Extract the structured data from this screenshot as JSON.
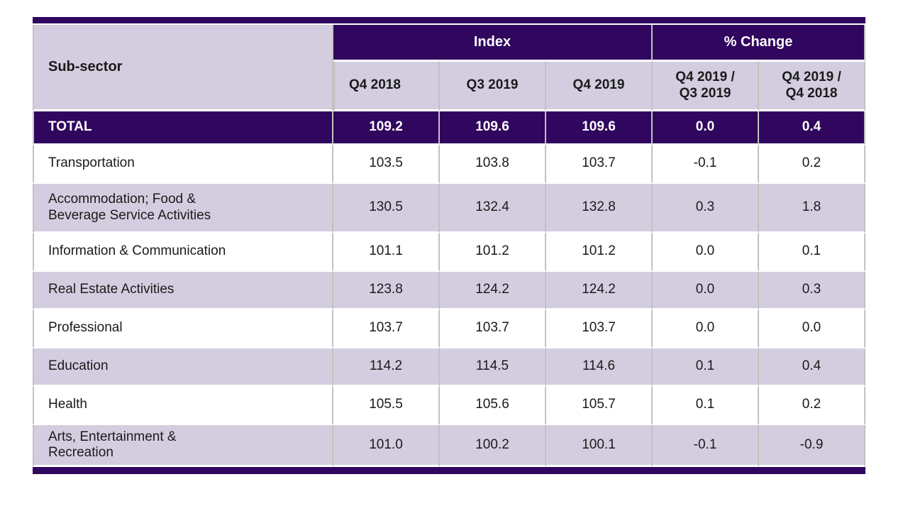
{
  "table": {
    "corner_header": "Sub-sector",
    "groups": [
      {
        "label": "Index"
      },
      {
        "label": "% Change"
      }
    ],
    "columns": [
      "Q4 2018",
      "Q3 2019",
      "Q4 2019",
      "Q4 2019 /\nQ3 2019",
      "Q4 2019 /\nQ4 2018"
    ],
    "total": {
      "label": "TOTAL",
      "values": [
        "109.2",
        "109.6",
        "109.6",
        "0.0",
        "0.4"
      ]
    },
    "rows": [
      {
        "label": "Transportation",
        "values": [
          "103.5",
          "103.8",
          "103.7",
          "-0.1",
          "0.2"
        ]
      },
      {
        "label": "Accommodation; Food &\nBeverage Service Activities",
        "values": [
          "130.5",
          "132.4",
          "132.8",
          "0.3",
          "1.8"
        ]
      },
      {
        "label": "Information & Communication",
        "values": [
          "101.1",
          "101.2",
          "101.2",
          "0.0",
          "0.1"
        ]
      },
      {
        "label": "Real Estate Activities",
        "values": [
          "123.8",
          "124.2",
          "124.2",
          "0.0",
          "0.3"
        ]
      },
      {
        "label": "Professional",
        "values": [
          "103.7",
          "103.7",
          "103.7",
          "0.0",
          "0.0"
        ]
      },
      {
        "label": "Education",
        "values": [
          "114.2",
          "114.5",
          "114.6",
          "0.1",
          "0.4"
        ]
      },
      {
        "label": "Health",
        "values": [
          "105.5",
          "105.6",
          "105.7",
          "0.1",
          "0.2"
        ]
      },
      {
        "label": "Arts, Entertainment &\nRecreation",
        "values": [
          "101.0",
          "100.2",
          "100.1",
          "-0.1",
          "-0.9"
        ]
      }
    ]
  },
  "colors": {
    "header_purple": "#30065e",
    "row_lavender": "#d4cde0",
    "divider_grey": "#c2c2c2",
    "row_white": "#ffffff",
    "text_dark": "#1a1a1a",
    "header_text_white": "#ffffff"
  },
  "chart_data": {
    "type": "table",
    "columns": [
      "Sub-sector",
      "Q4 2018",
      "Q3 2019",
      "Q4 2019",
      "Q4 2019 / Q3 2019",
      "Q4 2019 / Q4 2018"
    ],
    "column_groups": [
      {
        "label": "Index",
        "span": 3
      },
      {
        "label": "% Change",
        "span": 2
      }
    ],
    "rows": [
      {
        "label": "TOTAL",
        "values": [
          109.2,
          109.6,
          109.6,
          0.0,
          0.4
        ]
      },
      {
        "label": "Transportation",
        "values": [
          103.5,
          103.8,
          103.7,
          -0.1,
          0.2
        ]
      },
      {
        "label": "Accommodation; Food & Beverage Service Activities",
        "values": [
          130.5,
          132.4,
          132.8,
          0.3,
          1.8
        ]
      },
      {
        "label": "Information & Communication",
        "values": [
          101.1,
          101.2,
          101.2,
          0.0,
          0.1
        ]
      },
      {
        "label": "Real Estate Activities",
        "values": [
          123.8,
          124.2,
          124.2,
          0.0,
          0.3
        ]
      },
      {
        "label": "Professional",
        "values": [
          103.7,
          103.7,
          103.7,
          0.0,
          0.0
        ]
      },
      {
        "label": "Education",
        "values": [
          114.2,
          114.5,
          114.6,
          0.1,
          0.4
        ]
      },
      {
        "label": "Health",
        "values": [
          105.5,
          105.6,
          105.7,
          0.1,
          0.2
        ]
      },
      {
        "label": "Arts, Entertainment & Recreation",
        "values": [
          101.0,
          100.2,
          100.1,
          -0.1,
          -0.9
        ]
      }
    ]
  }
}
